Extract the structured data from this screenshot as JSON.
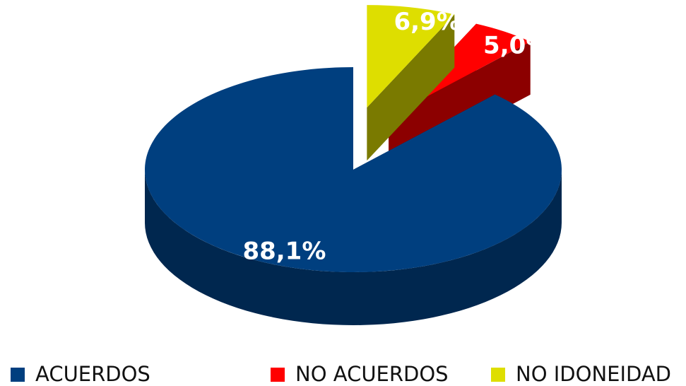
{
  "chart_data": {
    "type": "pie",
    "categories": [
      "ACUERDOS",
      "NO ACUERDOS",
      "NO IDONEIDAD"
    ],
    "values": [
      88.1,
      5.0,
      6.9
    ],
    "value_labels": [
      "88,1%",
      "5,0%",
      "6,9%"
    ],
    "colors": [
      "#003f7f",
      "#ff0000",
      "#dede00"
    ],
    "legend": "bottom"
  }
}
